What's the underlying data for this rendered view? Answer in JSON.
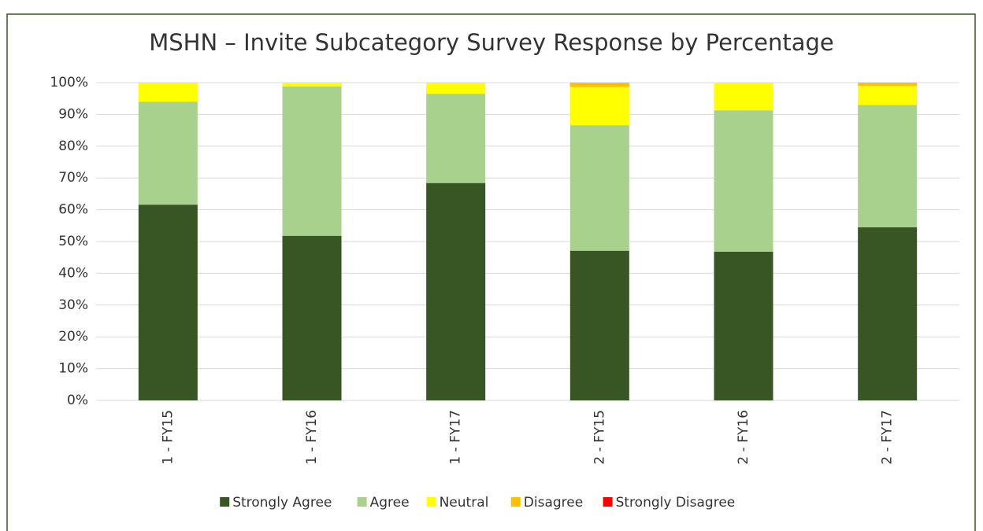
{
  "chart_data": {
    "type": "stacked_bar",
    "title": "MSHN – Invite Subcategory Survey Response by Percentage",
    "categories": [
      "1 - FY15",
      "1 - FY16",
      "1 - FY17",
      "2 - FY15",
      "2 - FY16",
      "2 - FY17"
    ],
    "series": [
      {
        "name": "Strongly Agree",
        "color": "#375623",
        "values": [
          61.6,
          51.8,
          68.4,
          47.1,
          46.8,
          54.5
        ]
      },
      {
        "name": "Agree",
        "color": "#a9d18e",
        "values": [
          32.4,
          47,
          28.1,
          39.5,
          44.5,
          38.5
        ]
      },
      {
        "name": "Neutral",
        "color": "#ffff00",
        "values": [
          6,
          1.2,
          3.5,
          12,
          8.7,
          6
        ]
      },
      {
        "name": "Disagree",
        "color": "#ffc000",
        "values": [
          0,
          0,
          0,
          1.4,
          0,
          1
        ]
      },
      {
        "name": "Strongly Disagree",
        "color": "#ff0000",
        "values": [
          0,
          0,
          0,
          0,
          0,
          0
        ]
      }
    ],
    "ylim": [
      0,
      100
    ],
    "yticks": [
      {
        "value": 0,
        "label": "0%"
      },
      {
        "value": 10,
        "label": "10%"
      },
      {
        "value": 20,
        "label": "20%"
      },
      {
        "value": 30,
        "label": "30%"
      },
      {
        "value": 40,
        "label": "40%"
      },
      {
        "value": 50,
        "label": "50%"
      },
      {
        "value": 60,
        "label": "60%"
      },
      {
        "value": 70,
        "label": "70%"
      },
      {
        "value": 80,
        "label": "80%"
      },
      {
        "value": 90,
        "label": "90%"
      },
      {
        "value": 100,
        "label": "100%"
      }
    ],
    "grid": true,
    "legend": "bottom"
  }
}
